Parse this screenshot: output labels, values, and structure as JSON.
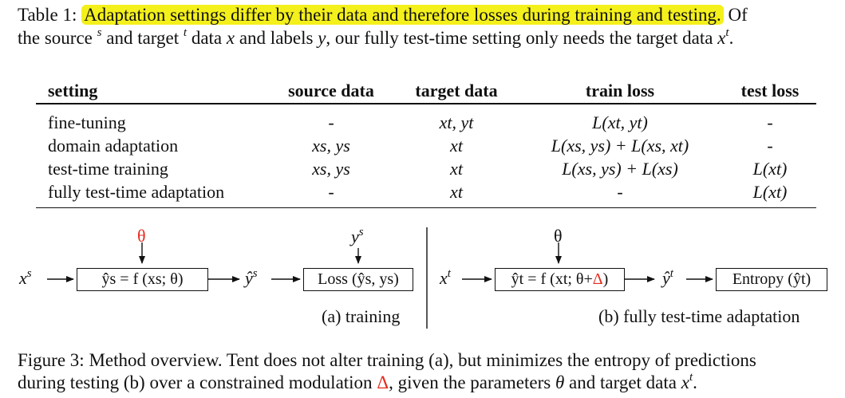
{
  "caption": {
    "label": "Table 1:",
    "highlight": "Adaptation settings differ by their data and therefore losses during training and testing.",
    "line1_after": "Of",
    "line2_a": "the source",
    "line2_b": "and target",
    "line2_c": "data",
    "line2_d": "and labels",
    "line2_e": ", our fully test-time setting only needs the target data",
    "sup_s": "s",
    "sup_t": "t",
    "x": "x",
    "y": "y",
    "period": "."
  },
  "table": {
    "headers": [
      "setting",
      "source data",
      "target data",
      "train loss",
      "test loss"
    ],
    "rows": [
      [
        "fine-tuning",
        "-",
        "xt, yt",
        "L(xt, yt)",
        "-"
      ],
      [
        "domain adaptation",
        "xs, ys",
        "xt",
        "L(xs, ys) + L(xs, xt)",
        "-"
      ],
      [
        "test-time training",
        "xs, ys",
        "xt",
        "L(xs, ys) + L(xs)",
        "L(xt)"
      ],
      [
        "fully test-time adaptation",
        "-",
        "xt",
        "-",
        "L(xt)"
      ]
    ]
  },
  "figure": {
    "training": {
      "theta": "θ",
      "ys_top": "y",
      "input": "x",
      "model_box": "ŷs = f (xs; θ)",
      "output": "ŷ",
      "loss_box": "Loss (ŷs, ys)",
      "sublabel": "(a) training"
    },
    "adaptation": {
      "theta": "θ",
      "input": "x",
      "model_box_a": "ŷt = f (xt; θ+",
      "delta": "Δ",
      "model_box_b": ")",
      "output": "ŷ",
      "entropy_box": "Entropy (ŷt)",
      "sublabel": "(b) fully test-time adaptation"
    },
    "caption": {
      "label": "Figure 3:",
      "line1": "Method overview. Tent does not alter training (a), but minimizes the entropy of predictions",
      "line2_a": "during testing (b) over a constrained modulation",
      "delta": "Δ",
      "line2_b": ", given the parameters",
      "theta": "θ",
      "line2_c": "and target data",
      "x": "x",
      "sup_t": "t",
      "period": "."
    }
  },
  "colors": {
    "highlight": "#f4f01b",
    "accent_red": "#e52a1e"
  }
}
